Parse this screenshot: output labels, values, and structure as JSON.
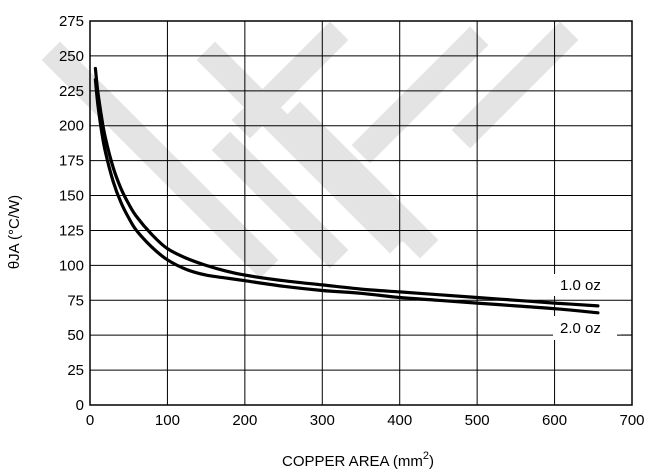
{
  "chart_data": {
    "type": "line",
    "xlabel": "COPPER AREA (mm",
    "xlabel_superscript": "2",
    "xlabel_suffix": ")",
    "ylabel": "θJA (°C/W)",
    "xlim": [
      0,
      700
    ],
    "ylim": [
      0,
      275
    ],
    "x_ticks": [
      0,
      100,
      200,
      300,
      400,
      500,
      600,
      700
    ],
    "y_ticks": [
      0,
      25,
      50,
      75,
      100,
      125,
      150,
      175,
      200,
      225,
      250,
      275
    ],
    "grid": true,
    "watermark": true,
    "series": [
      {
        "name": "1.0 oz",
        "x": [
          7,
          10,
          15,
          20,
          30,
          40,
          50,
          60,
          80,
          100,
          125,
          150,
          175,
          200,
          250,
          300,
          350,
          400,
          450,
          500,
          550,
          600,
          656
        ],
        "y": [
          241,
          225,
          206,
          191,
          170,
          155,
          144,
          135,
          122,
          112,
          105,
          100,
          96,
          93,
          89,
          86,
          83,
          81,
          79,
          77,
          75,
          73,
          71
        ]
      },
      {
        "name": "2.0 oz",
        "x": [
          7,
          10,
          15,
          20,
          30,
          40,
          50,
          60,
          80,
          100,
          125,
          150,
          175,
          200,
          250,
          300,
          350,
          400,
          450,
          500,
          550,
          600,
          656
        ],
        "y": [
          233,
          216,
          196,
          181,
          160,
          145,
          134,
          125,
          113,
          104,
          97,
          93,
          91,
          89,
          85,
          82,
          80,
          77,
          75,
          73,
          71,
          69,
          66
        ]
      }
    ]
  }
}
